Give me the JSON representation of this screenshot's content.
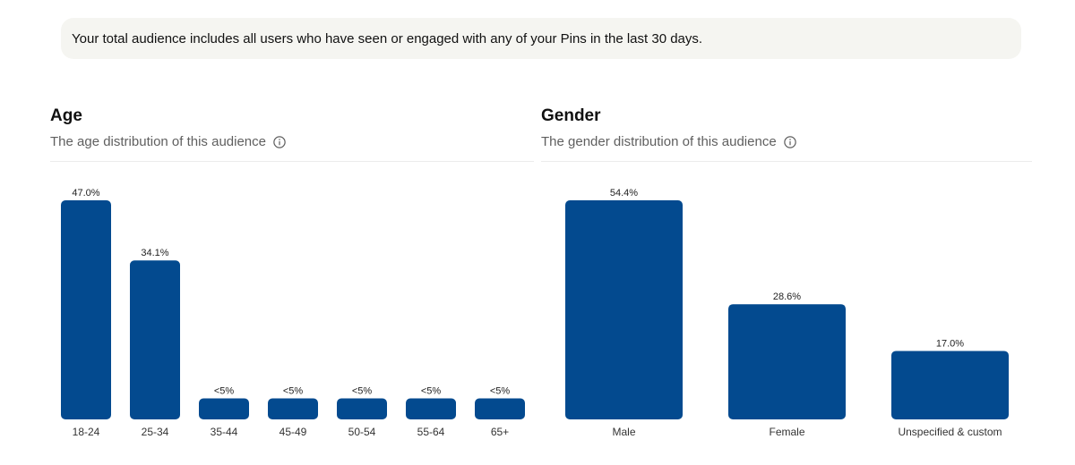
{
  "banner": {
    "text": "Your total audience includes all users who have seen or engaged with any of your Pins in the last 30 days."
  },
  "age": {
    "title": "Age",
    "subtitle": "The age distribution of this audience"
  },
  "gender": {
    "title": "Gender",
    "subtitle": "The gender distribution of this audience"
  },
  "icons": {
    "info": "info-circle-icon"
  },
  "colors": {
    "bar": "#034a8f",
    "banner_bg": "#f5f5f1"
  },
  "chart_data": [
    {
      "type": "bar",
      "categories": [
        "18-24",
        "25-34",
        "35-44",
        "45-49",
        "50-54",
        "55-64",
        "65+"
      ],
      "values": [
        47.0,
        34.1,
        4.5,
        4.5,
        4.5,
        4.5,
        4.5
      ],
      "data_labels": [
        "47.0%",
        "34.1%",
        "<5%",
        "<5%",
        "<5%",
        "<5%",
        "<5%"
      ],
      "ylim": [
        0,
        47.0
      ]
    },
    {
      "type": "bar",
      "categories": [
        "Male",
        "Female",
        "Unspecified & custom"
      ],
      "values": [
        54.4,
        28.6,
        17.0
      ],
      "data_labels": [
        "54.4%",
        "28.6%",
        "17.0%"
      ],
      "ylim": [
        0,
        54.4
      ]
    }
  ]
}
